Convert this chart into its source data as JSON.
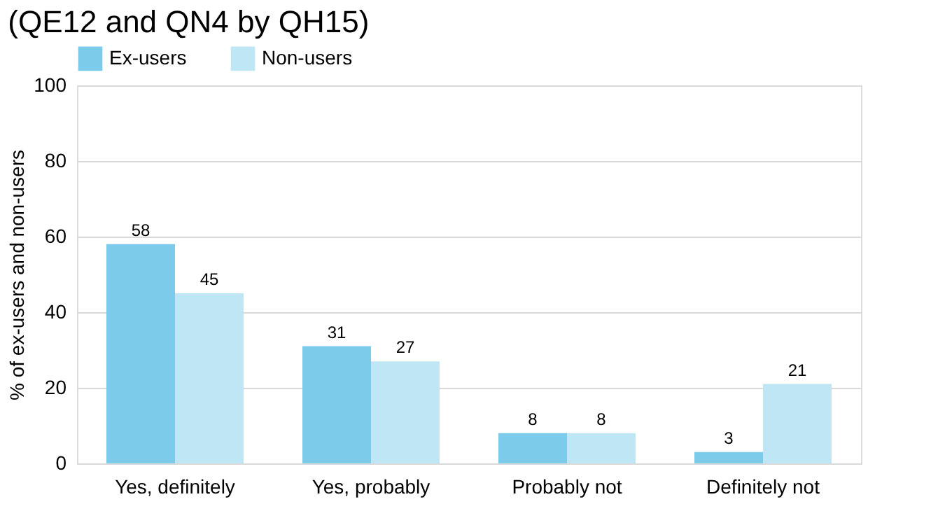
{
  "chart_data": {
    "type": "bar",
    "title": "(QE12 and QN4 by QH15)",
    "ylabel": "% of ex-users and non-users",
    "categories": [
      "Yes, definitely",
      "Yes, probably",
      "Probably not",
      "Definitely not"
    ],
    "series": [
      {
        "name": "Ex-users",
        "color": "#7ccbeb",
        "values": [
          58,
          31,
          8,
          3
        ]
      },
      {
        "name": "Non-users",
        "color": "#bfe6f5",
        "values": [
          45,
          27,
          8,
          21
        ]
      }
    ],
    "ylim": [
      0,
      100
    ],
    "yticks": [
      0,
      20,
      40,
      60,
      80,
      100
    ],
    "grid": "y",
    "legend": "top left",
    "data_labels": true
  }
}
